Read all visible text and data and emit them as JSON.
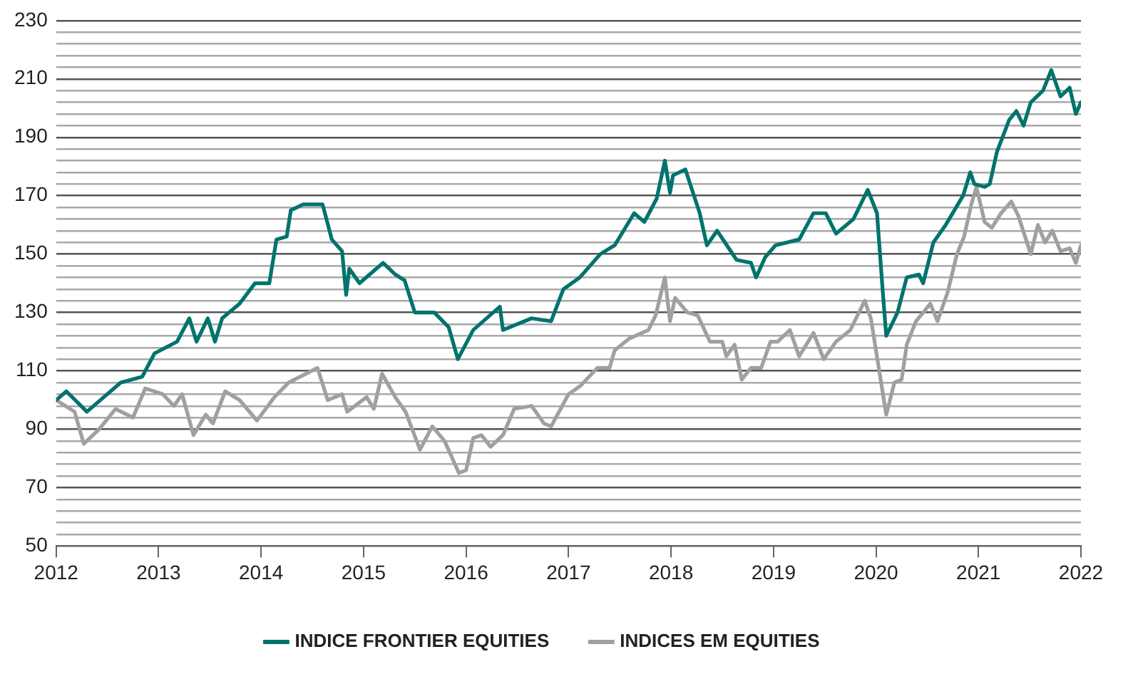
{
  "chart_data": {
    "type": "line",
    "legend": "bottom",
    "grid": "y",
    "marker": "none",
    "line_style": "solid",
    "xlim": [
      2012,
      2022
    ],
    "xticks": [
      2012,
      2013,
      2014,
      2015,
      2016,
      2017,
      2018,
      2019,
      2020,
      2021,
      2022
    ],
    "ylim": [
      50,
      230
    ],
    "yticks": [
      50,
      {
        "value": 54,
        "label": null
      },
      {
        "value": 58,
        "label": null
      },
      {
        "value": 62,
        "label": null
      },
      {
        "value": 66,
        "label": null
      },
      70,
      {
        "value": 74,
        "label": null
      },
      {
        "value": 78,
        "label": null
      },
      {
        "value": 82,
        "label": null
      },
      {
        "value": 86,
        "label": null
      },
      90,
      {
        "value": 94,
        "label": null
      },
      {
        "value": 98,
        "label": null
      },
      {
        "value": 102,
        "label": null
      },
      {
        "value": 106,
        "label": null
      },
      110,
      {
        "value": 114,
        "label": null
      },
      {
        "value": 118,
        "label": null
      },
      {
        "value": 122,
        "label": null
      },
      {
        "value": 126,
        "label": null
      },
      130,
      {
        "value": 134,
        "label": null
      },
      {
        "value": 138,
        "label": null
      },
      {
        "value": 142,
        "label": null
      },
      {
        "value": 146,
        "label": null
      },
      150,
      {
        "value": 154,
        "label": null
      },
      {
        "value": 158,
        "label": null
      },
      {
        "value": 162,
        "label": null
      },
      {
        "value": 166,
        "label": null
      },
      170,
      {
        "value": 174,
        "label": null
      },
      {
        "value": 178,
        "label": null
      },
      {
        "value": 182,
        "label": null
      },
      {
        "value": 186,
        "label": null
      },
      190,
      {
        "value": 194,
        "label": null
      },
      {
        "value": 198,
        "label": null
      },
      {
        "value": 202,
        "label": null
      },
      {
        "value": 206,
        "label": null
      },
      210,
      {
        "value": 214,
        "label": null
      },
      {
        "value": 218,
        "label": null
      },
      {
        "value": 222,
        "label": null
      },
      {
        "value": 226,
        "label": null
      },
      230
    ],
    "series": [
      {
        "name": "INDICE FRONTIER EQUITIES",
        "color": "#00736d",
        "x": [
          2012,
          2012.1,
          2012.3,
          2012.63,
          2012.84,
          2012.96,
          2013.18,
          2013.3,
          2013.37,
          2013.48,
          2013.55,
          2013.62,
          2013.79,
          2013.94,
          2014.08,
          2014.15,
          2014.25,
          2014.29,
          2014.41,
          2014.6,
          2014.69,
          2014.79,
          2014.83,
          2014.86,
          2014.96,
          2015.19,
          2015.31,
          2015.4,
          2015.5,
          2015.69,
          2015.83,
          2015.92,
          2016.07,
          2016.33,
          2016.36,
          2016.64,
          2016.83,
          2016.95,
          2017.11,
          2017.31,
          2017.45,
          2017.64,
          2017.74,
          2017.86,
          2017.94,
          2017.99,
          2018.02,
          2018.14,
          2018.28,
          2018.35,
          2018.45,
          2018.64,
          2018.78,
          2018.83,
          2018.92,
          2019.02,
          2019.25,
          2019.39,
          2019.51,
          2019.61,
          2019.78,
          2019.92,
          2020.01,
          2020.06,
          2020.1,
          2020.21,
          2020.3,
          2020.42,
          2020.46,
          2020.56,
          2020.68,
          2020.85,
          2020.92,
          2020.96,
          2021.06,
          2021.11,
          2021.18,
          2021.3,
          2021.37,
          2021.44,
          2021.51,
          2021.63,
          2021.71,
          2021.8,
          2021.89,
          2021.95,
          2022
        ],
        "values": [
          100,
          103,
          96,
          106,
          108,
          116,
          120,
          128,
          120,
          128,
          120,
          128,
          133,
          140,
          140,
          155,
          156,
          165,
          167,
          167,
          155,
          151,
          136,
          145,
          140,
          147,
          143,
          141,
          130,
          130,
          125,
          114,
          124,
          132,
          124,
          128,
          127,
          138,
          142,
          150,
          153,
          164,
          161,
          169,
          182,
          171,
          177,
          179,
          164,
          153,
          158,
          148,
          147,
          142,
          149,
          153,
          155,
          164,
          164,
          157,
          162,
          172,
          164,
          140,
          122,
          130,
          142,
          143,
          140,
          154,
          160,
          170,
          178,
          174,
          173,
          174,
          185,
          196,
          199,
          194,
          202,
          206,
          213,
          204,
          207,
          198,
          202
        ]
      },
      {
        "name": "INDICES EM EQUITIES",
        "color": "#a0a0a0",
        "x": [
          2012,
          2012.18,
          2012.27,
          2012.42,
          2012.58,
          2012.75,
          2012.87,
          2013.04,
          2013.15,
          2013.23,
          2013.34,
          2013.46,
          2013.53,
          2013.65,
          2013.79,
          2013.96,
          2014.13,
          2014.27,
          2014.55,
          2014.65,
          2014.79,
          2014.84,
          2015.03,
          2015.1,
          2015.18,
          2015.31,
          2015.41,
          2015.55,
          2015.67,
          2015.79,
          2015.93,
          2016,
          2016.07,
          2016.15,
          2016.24,
          2016.36,
          2016.47,
          2016.64,
          2016.76,
          2016.83,
          2017,
          2017.12,
          2017.28,
          2017.4,
          2017.45,
          2017.59,
          2017.78,
          2017.85,
          2017.94,
          2017.99,
          2018.04,
          2018.16,
          2018.26,
          2018.38,
          2018.5,
          2018.54,
          2018.62,
          2018.69,
          2018.78,
          2018.88,
          2018.97,
          2019.04,
          2019.16,
          2019.25,
          2019.39,
          2019.49,
          2019.61,
          2019.75,
          2019.89,
          2019.95,
          2020.1,
          2020.18,
          2020.25,
          2020.3,
          2020.39,
          2020.53,
          2020.6,
          2020.7,
          2020.79,
          2020.86,
          2020.93,
          2020.98,
          2021.06,
          2021.13,
          2021.22,
          2021.32,
          2021.39,
          2021.51,
          2021.58,
          2021.65,
          2021.72,
          2021.8,
          2021.89,
          2021.95,
          2022
        ],
        "values": [
          100,
          96,
          85,
          90,
          97,
          94,
          104,
          102,
          98,
          102,
          88,
          95,
          92,
          103,
          100,
          93,
          101,
          106,
          111,
          100,
          102,
          96,
          101,
          97,
          109,
          101,
          96,
          83,
          91,
          86,
          75,
          76,
          87,
          88,
          84,
          88,
          97,
          98,
          92,
          91,
          102,
          105,
          111,
          111,
          117,
          121,
          124,
          129,
          142,
          127,
          135,
          130,
          129,
          120,
          120,
          115,
          119,
          107,
          111,
          111,
          120,
          120,
          124,
          115,
          123,
          114,
          120,
          124,
          134,
          128,
          95,
          106,
          107,
          119,
          127,
          133,
          127,
          137,
          150,
          156,
          167,
          173,
          161,
          159,
          164,
          168,
          163,
          150,
          160,
          154,
          158,
          151,
          152,
          147,
          153
        ]
      }
    ]
  }
}
